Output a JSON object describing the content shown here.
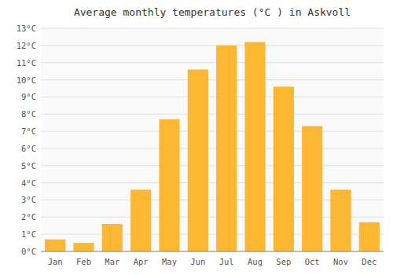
{
  "chart_data": {
    "type": "bar",
    "title": "Average monthly temperatures (°C ) in Askvoll",
    "categories": [
      "Jan",
      "Feb",
      "Mar",
      "Apr",
      "May",
      "Jun",
      "Jul",
      "Aug",
      "Sep",
      "Oct",
      "Nov",
      "Dec"
    ],
    "values": [
      0.7,
      0.5,
      1.6,
      3.6,
      7.7,
      10.6,
      12.0,
      12.2,
      9.6,
      7.3,
      3.6,
      1.7
    ],
    "color": "#FDB733",
    "ylim": [
      0,
      13
    ],
    "yticks": [
      {
        "value": 0,
        "label": "0°C"
      },
      {
        "value": 1,
        "label": "1°C"
      },
      {
        "value": 2,
        "label": "2°C"
      },
      {
        "value": 3,
        "label": "3°C"
      },
      {
        "value": 4,
        "label": "4°C"
      },
      {
        "value": 5,
        "label": "5°C"
      },
      {
        "value": 6,
        "label": "6°C"
      },
      {
        "value": 7,
        "label": "7°C"
      },
      {
        "value": 8,
        "label": "8°C"
      },
      {
        "value": 9,
        "label": "9°C"
      },
      {
        "value": 10,
        "label": "10°C"
      },
      {
        "value": 11,
        "label": "11°C"
      },
      {
        "value": 12,
        "label": "12°C"
      },
      {
        "value": 13,
        "label": "13°C"
      }
    ],
    "grid": true
  }
}
